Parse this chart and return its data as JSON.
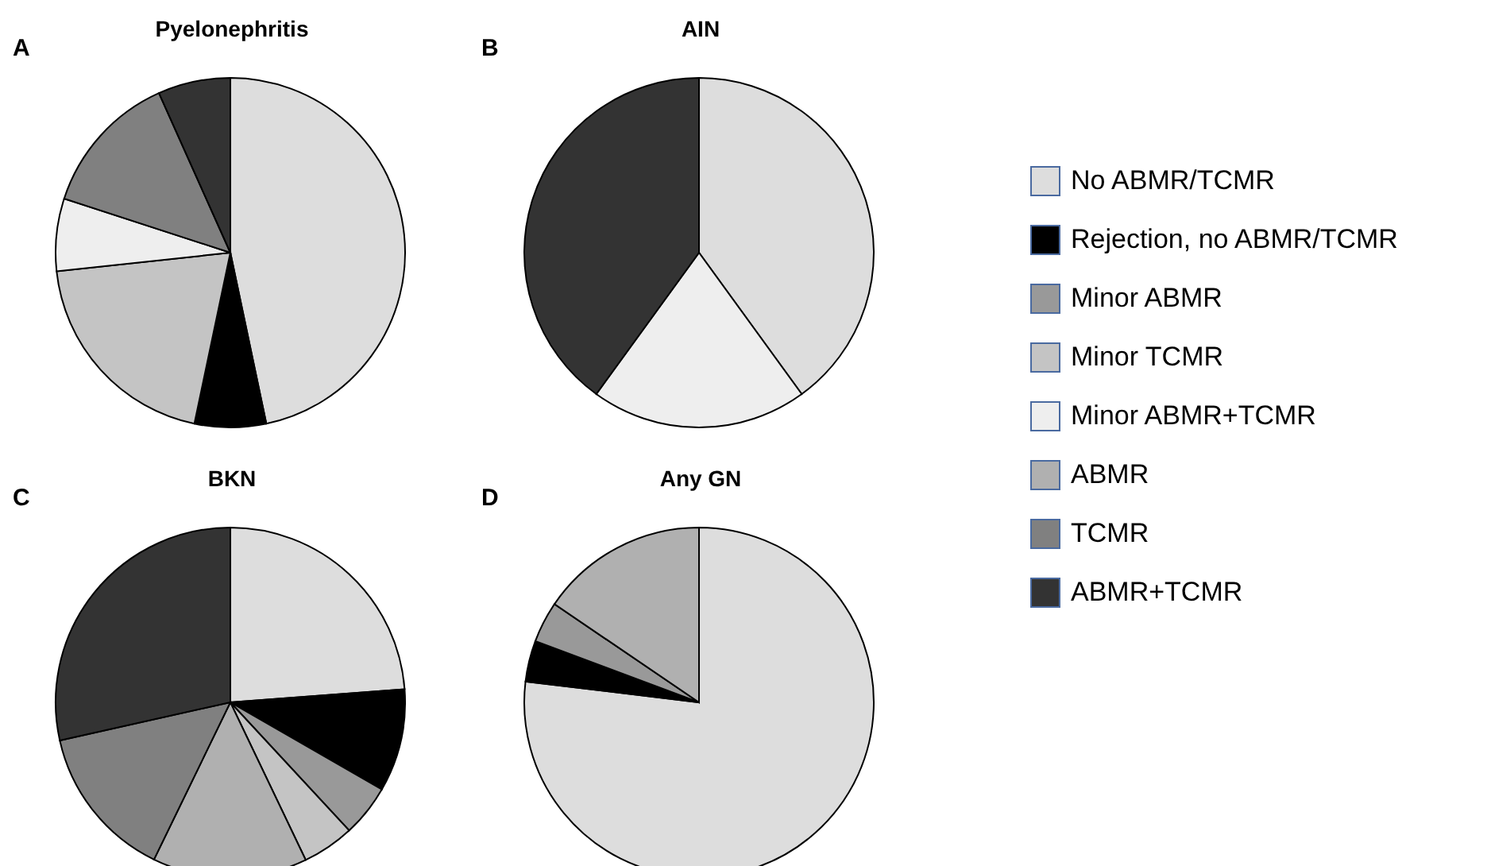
{
  "chart_data": [
    {
      "type": "pie",
      "title": "Pyelonephritis",
      "annotations": [
        "A"
      ],
      "categories": [
        null,
        null,
        null,
        null,
        null,
        null
      ],
      "values": [
        46.7,
        6.6,
        20,
        6.7,
        13.3,
        6.7
      ],
      "colors": [
        "#dddddd",
        "#000000",
        "#c4c4c4",
        "#eeeeee",
        "#808080",
        "#333333"
      ]
    },
    {
      "type": "pie",
      "title": "AIN",
      "annotations": [
        "B"
      ],
      "legend": "right",
      "categories": [
        "No ABMR/TCMR",
        "Rejection, no ABMR/TCMR",
        "Minor ABMR",
        "Minor TCMR",
        "Minor ABMR+TCMR",
        "ABMR",
        "TCMR",
        "ABMR+TCMR"
      ],
      "values": [
        40,
        null,
        null,
        null,
        20,
        null,
        null,
        40
      ],
      "colors": [
        "#dddddd",
        "#000000",
        "#999999",
        "#c4c4c4",
        "#eeeeee",
        "#b0b0b0",
        "#808080",
        "#333333"
      ]
    },
    {
      "type": "pie",
      "title": "BKN",
      "annotations": [
        "C"
      ],
      "categories": [
        null,
        null,
        null,
        null,
        null,
        null,
        null
      ],
      "values": [
        23.8,
        9.5,
        4.8,
        4.8,
        14.3,
        14.3,
        28.5
      ],
      "colors": [
        "#dddddd",
        "#000000",
        "#999999",
        "#c4c4c4",
        "#b0b0b0",
        "#808080",
        "#333333"
      ]
    },
    {
      "type": "pie",
      "title": "Any GN",
      "annotations": [
        "D"
      ],
      "categories": [
        null,
        null,
        null,
        null
      ],
      "values": [
        76.9,
        3.8,
        3.8,
        15.5
      ],
      "colors": [
        "#dddddd",
        "#000000",
        "#999999",
        "#b0b0b0"
      ]
    }
  ]
}
